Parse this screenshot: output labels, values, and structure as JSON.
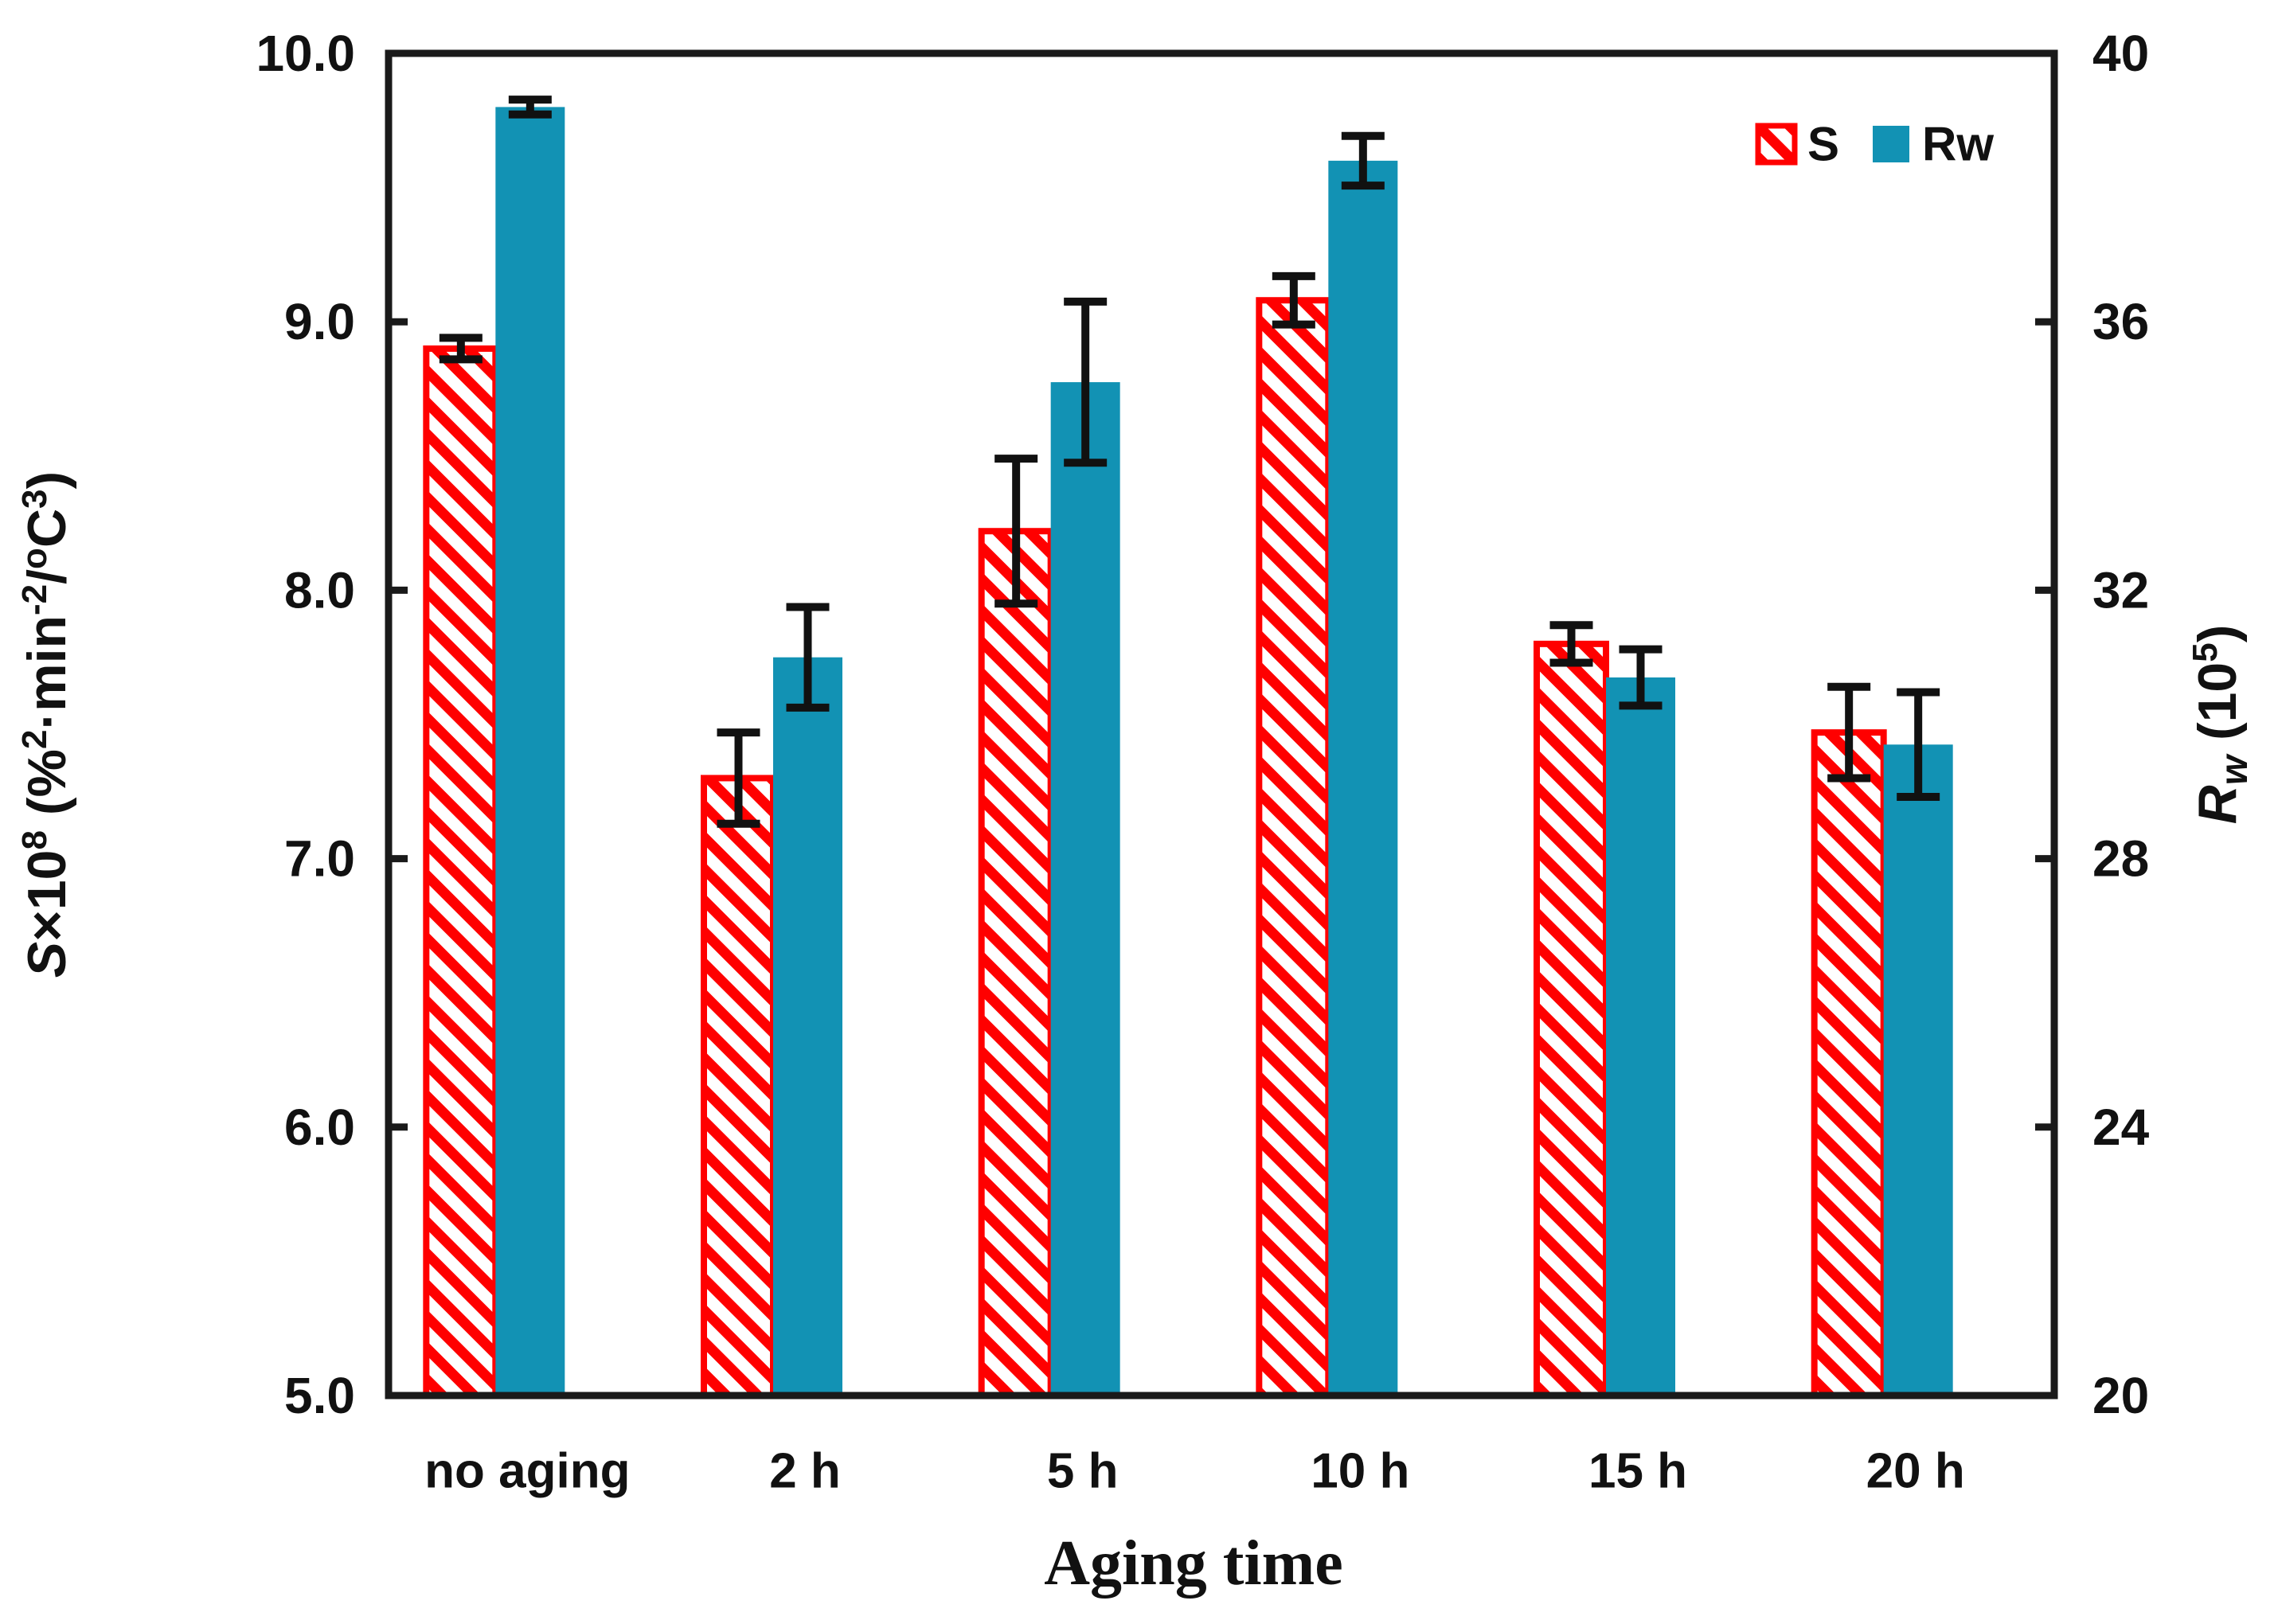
{
  "figure": {
    "background": "#ffffff",
    "frame_color": "#1a1a1a",
    "error_bar_color": "#111111"
  },
  "chart_data": {
    "type": "bar",
    "subtype": "grouped-dual-axis",
    "categories": [
      "no aging",
      "2 h",
      "5 h",
      "10 h",
      "15 h",
      "20 h"
    ],
    "series": [
      {
        "name": "S",
        "axis": "left",
        "style": "hatched",
        "color": "#ff0000",
        "values": [
          8.9,
          7.3,
          8.22,
          9.08,
          7.8,
          7.47
        ],
        "errors": [
          0.04,
          0.17,
          0.27,
          0.09,
          0.07,
          0.17
        ]
      },
      {
        "name": "Rw",
        "axis": "right",
        "style": "solid",
        "color": "#1292b4",
        "values": [
          39.2,
          31.0,
          35.1,
          38.4,
          30.7,
          29.7
        ],
        "errors": [
          0.11,
          0.75,
          1.2,
          0.37,
          0.42,
          0.78
        ]
      }
    ],
    "left_axis": {
      "label": "S×10⁸ (%²·min⁻²/°C³)",
      "min": 5.0,
      "max": 10.0,
      "step": 1.0,
      "ticks": [
        "5.0",
        "6.0",
        "7.0",
        "8.0",
        "9.0",
        "10.0"
      ],
      "label_runs": [
        {
          "t": "S",
          "italic": true
        },
        {
          "t": "×10"
        },
        {
          "t": "8",
          "sup": true
        },
        {
          "t": " (%"
        },
        {
          "t": "2",
          "sup": true
        },
        {
          "t": "·min"
        },
        {
          "t": "-2",
          "sup": true
        },
        {
          "t": "/"
        },
        {
          "t": "o",
          "sup": true
        },
        {
          "t": "C"
        },
        {
          "t": "3",
          "sup": true
        },
        {
          "t": ")"
        }
      ]
    },
    "right_axis": {
      "label": "Rw (10⁵)",
      "min": 20,
      "max": 40,
      "step": 4,
      "ticks": [
        "20",
        "24",
        "28",
        "32",
        "36",
        "40"
      ],
      "label_runs": [
        {
          "t": "R",
          "italic": true
        },
        {
          "t": "w",
          "sub": true,
          "italic": true
        },
        {
          "t": " (10"
        },
        {
          "t": "5",
          "sup": true
        },
        {
          "t": ")"
        }
      ]
    },
    "x_axis": {
      "label": "Aging time",
      "tick_labels": [
        "no aging",
        "2 h",
        "5 h",
        "10 h",
        "15 h",
        "20 h"
      ]
    },
    "legend": {
      "position": "top-right",
      "items": [
        {
          "label": "S",
          "swatch": "hatched-red"
        },
        {
          "label": "Rw",
          "swatch": "solid-teal"
        }
      ]
    },
    "grid": false
  }
}
